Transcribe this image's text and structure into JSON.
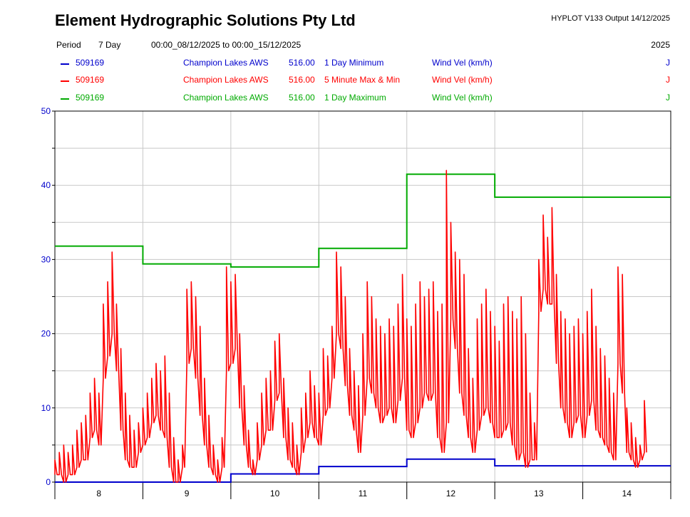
{
  "header": {
    "company": "Element Hydrographic Solutions Pty Ltd",
    "version": "HYPLOT V133  Output 14/12/2025",
    "period_label": "Period",
    "period_value": "7 Day",
    "period_range": "00:00_08/12/2025 to 00:00_15/12/2025",
    "year": "2025"
  },
  "legend": [
    {
      "site": "509169",
      "station": "Champion Lakes AWS",
      "value": "516.00",
      "desc": "1 Day Minimum",
      "variable": "Wind Vel (km/h)",
      "flag": "J",
      "color": "#0000cc"
    },
    {
      "site": "509169",
      "station": "Champion Lakes AWS",
      "value": "516.00",
      "desc": "5 Minute Max & Min",
      "variable": "Wind Vel (km/h)",
      "flag": "J",
      "color": "#ff0000"
    },
    {
      "site": "509169",
      "station": "Champion Lakes AWS",
      "value": "516.00",
      "desc": "1 Day Maximum",
      "variable": "Wind Vel (km/h)",
      "flag": "J",
      "color": "#00aa00"
    }
  ],
  "chart_data": {
    "type": "line",
    "xlabel": "",
    "ylabel": "",
    "xlim": [
      8,
      15
    ],
    "ylim": [
      0,
      50
    ],
    "y_ticks": [
      0,
      10,
      20,
      30,
      40,
      50
    ],
    "x_tick_labels": [
      "8",
      "9",
      "10",
      "11",
      "12",
      "13",
      "14"
    ],
    "grid": true,
    "series": [
      {
        "name": "1 Day Minimum",
        "color": "#0000cc",
        "style": "step",
        "x": [
          8,
          9,
          10,
          11,
          12,
          13,
          14
        ],
        "values": [
          0.0,
          0.0,
          1.1,
          2.1,
          3.1,
          2.2,
          2.2
        ]
      },
      {
        "name": "1 Day Maximum",
        "color": "#00aa00",
        "style": "step",
        "x": [
          8,
          9,
          10,
          11,
          12,
          13,
          14
        ],
        "values": [
          31.8,
          29.4,
          29.0,
          31.5,
          41.5,
          38.4,
          38.4
        ]
      },
      {
        "name": "5 Minute Max & Min",
        "color": "#ff0000",
        "style": "noisy-line",
        "x": [
          8.0,
          8.05,
          8.1,
          8.15,
          8.2,
          8.25,
          8.3,
          8.35,
          8.4,
          8.45,
          8.5,
          8.55,
          8.6,
          8.65,
          8.7,
          8.75,
          8.8,
          8.85,
          8.9,
          8.95,
          9.0,
          9.05,
          9.1,
          9.15,
          9.2,
          9.25,
          9.3,
          9.35,
          9.4,
          9.45,
          9.5,
          9.55,
          9.6,
          9.65,
          9.7,
          9.75,
          9.8,
          9.85,
          9.9,
          9.95,
          10.0,
          10.05,
          10.1,
          10.15,
          10.2,
          10.25,
          10.3,
          10.35,
          10.4,
          10.45,
          10.5,
          10.55,
          10.6,
          10.65,
          10.7,
          10.75,
          10.8,
          10.85,
          10.9,
          10.95,
          11.0,
          11.05,
          11.1,
          11.15,
          11.2,
          11.25,
          11.3,
          11.35,
          11.4,
          11.45,
          11.5,
          11.55,
          11.6,
          11.65,
          11.7,
          11.75,
          11.8,
          11.85,
          11.9,
          11.95,
          12.0,
          12.05,
          12.1,
          12.15,
          12.2,
          12.25,
          12.3,
          12.35,
          12.4,
          12.45,
          12.5,
          12.55,
          12.6,
          12.65,
          12.7,
          12.75,
          12.8,
          12.85,
          12.9,
          12.95,
          13.0,
          13.05,
          13.1,
          13.15,
          13.2,
          13.25,
          13.3,
          13.35,
          13.4,
          13.45,
          13.5,
          13.55,
          13.6,
          13.65,
          13.7,
          13.75,
          13.8,
          13.85,
          13.9,
          13.95,
          14.0,
          14.05,
          14.1,
          14.15,
          14.2,
          14.25,
          14.3,
          14.35,
          14.4,
          14.45,
          14.5,
          14.55,
          14.6,
          14.65,
          14.7
        ],
        "max": [
          3,
          4,
          5,
          4,
          5,
          7,
          8,
          9,
          12,
          14,
          12,
          24,
          27,
          31,
          24,
          18,
          12,
          9,
          7,
          8,
          10,
          12,
          14,
          16,
          15,
          17,
          12,
          6,
          3,
          5,
          26,
          27,
          25,
          21,
          14,
          9,
          5,
          3,
          6,
          29,
          27,
          28,
          20,
          13,
          7,
          3,
          8,
          12,
          14,
          15,
          19,
          20,
          14,
          10,
          8,
          5,
          10,
          12,
          15,
          13,
          12,
          18,
          17,
          21,
          31,
          29,
          25,
          18,
          15,
          13,
          20,
          27,
          25,
          22,
          21,
          20,
          22,
          21,
          24,
          28,
          22,
          21,
          24,
          27,
          25,
          26,
          27,
          23,
          24,
          42,
          35,
          31,
          30,
          28,
          18,
          14,
          22,
          24,
          26,
          23,
          21,
          19,
          24,
          25,
          23,
          22,
          25,
          20,
          12,
          8,
          30,
          36,
          33,
          37,
          28,
          23,
          22,
          20,
          21,
          22,
          20,
          23,
          26,
          21,
          18,
          17,
          14,
          12,
          29,
          28,
          10,
          8,
          6,
          5,
          11
        ],
        "min": [
          1,
          1,
          0,
          1,
          1,
          2,
          3,
          3,
          6,
          7,
          5,
          14,
          17,
          20,
          15,
          7,
          3,
          2,
          2,
          4,
          5,
          6,
          8,
          9,
          7,
          6,
          2,
          0,
          0,
          2,
          16,
          18,
          14,
          9,
          5,
          2,
          1,
          0,
          2,
          15,
          16,
          18,
          10,
          5,
          2,
          1,
          3,
          5,
          7,
          7,
          11,
          12,
          6,
          3,
          2,
          1,
          4,
          6,
          8,
          6,
          5,
          9,
          10,
          14,
          20,
          18,
          13,
          9,
          7,
          4,
          9,
          14,
          12,
          10,
          8,
          9,
          10,
          8,
          11,
          14,
          7,
          6,
          8,
          10,
          12,
          11,
          12,
          6,
          4,
          8,
          22,
          18,
          12,
          9,
          6,
          4,
          7,
          9,
          10,
          8,
          6,
          6,
          7,
          8,
          5,
          3,
          4,
          2,
          3,
          3,
          23,
          26,
          24,
          24,
          16,
          10,
          8,
          6,
          8,
          9,
          6,
          9,
          11,
          7,
          6,
          5,
          4,
          3,
          16,
          12,
          4,
          3,
          2,
          3,
          4
        ]
      }
    ]
  }
}
